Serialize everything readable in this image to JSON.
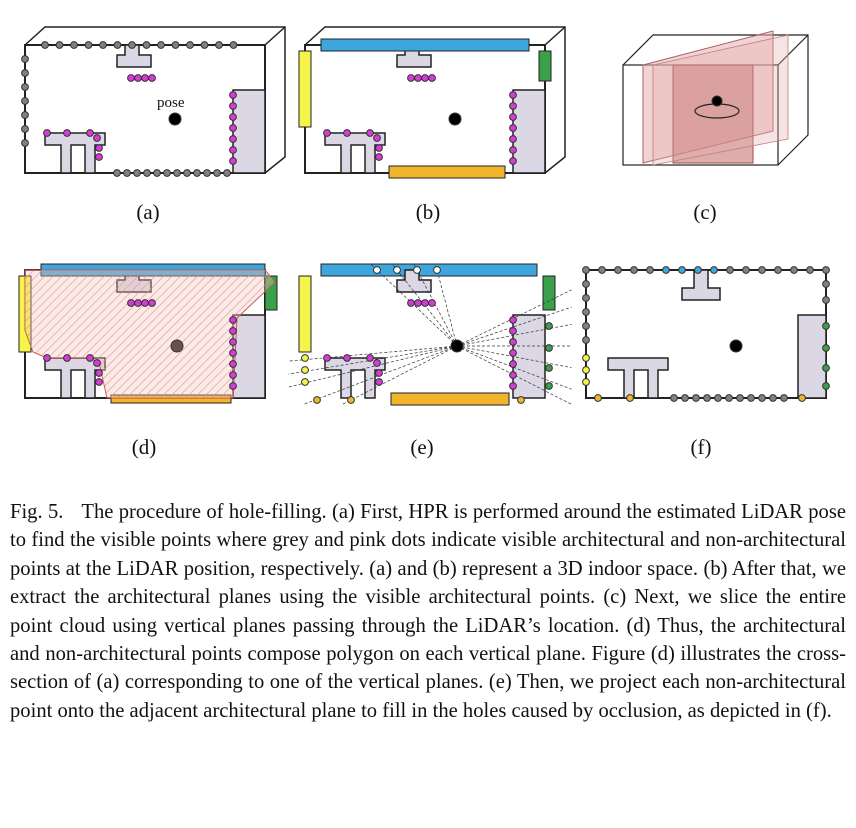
{
  "figure": {
    "panel_labels": [
      "(a)",
      "(b)",
      "(c)",
      "(d)",
      "(e)",
      "(f)"
    ],
    "annotation_pose": "pose",
    "colors": {
      "outline": "#222222",
      "architectural_point": "#808080",
      "non_architectural_point": "#d63bd6",
      "plane_blue": "#3da6dd",
      "plane_yellow": "#f4f44a",
      "plane_orange": "#f0b52d",
      "plane_green": "#3aa04a",
      "furniture_fill": "#dcd7e4",
      "slice_fill": "#e4b0ae",
      "pose_dot": "#000000"
    }
  },
  "caption": {
    "label": "Fig. 5.",
    "text": "The procedure of hole-filling. (a) First, HPR is performed around the estimated LiDAR pose to find the visible points where grey and pink dots indicate visible architectural and non-architectural points at the LiDAR position, respectively. (a) and (b) represent a 3D indoor space. (b) After that, we extract the architectural planes using the visible architectural points. (c) Next, we slice the entire point cloud using vertical planes passing through the LiDAR’s location. (d) Thus, the architectural and non-architectural points compose polygon on each vertical plane. Figure (d) illustrates the cross-section of (a) corresponding to one of the vertical planes. (e) Then, we project each non-architectural point onto the adjacent architectural plane to fill in the holes caused by occlusion, as depicted in (f)."
  }
}
